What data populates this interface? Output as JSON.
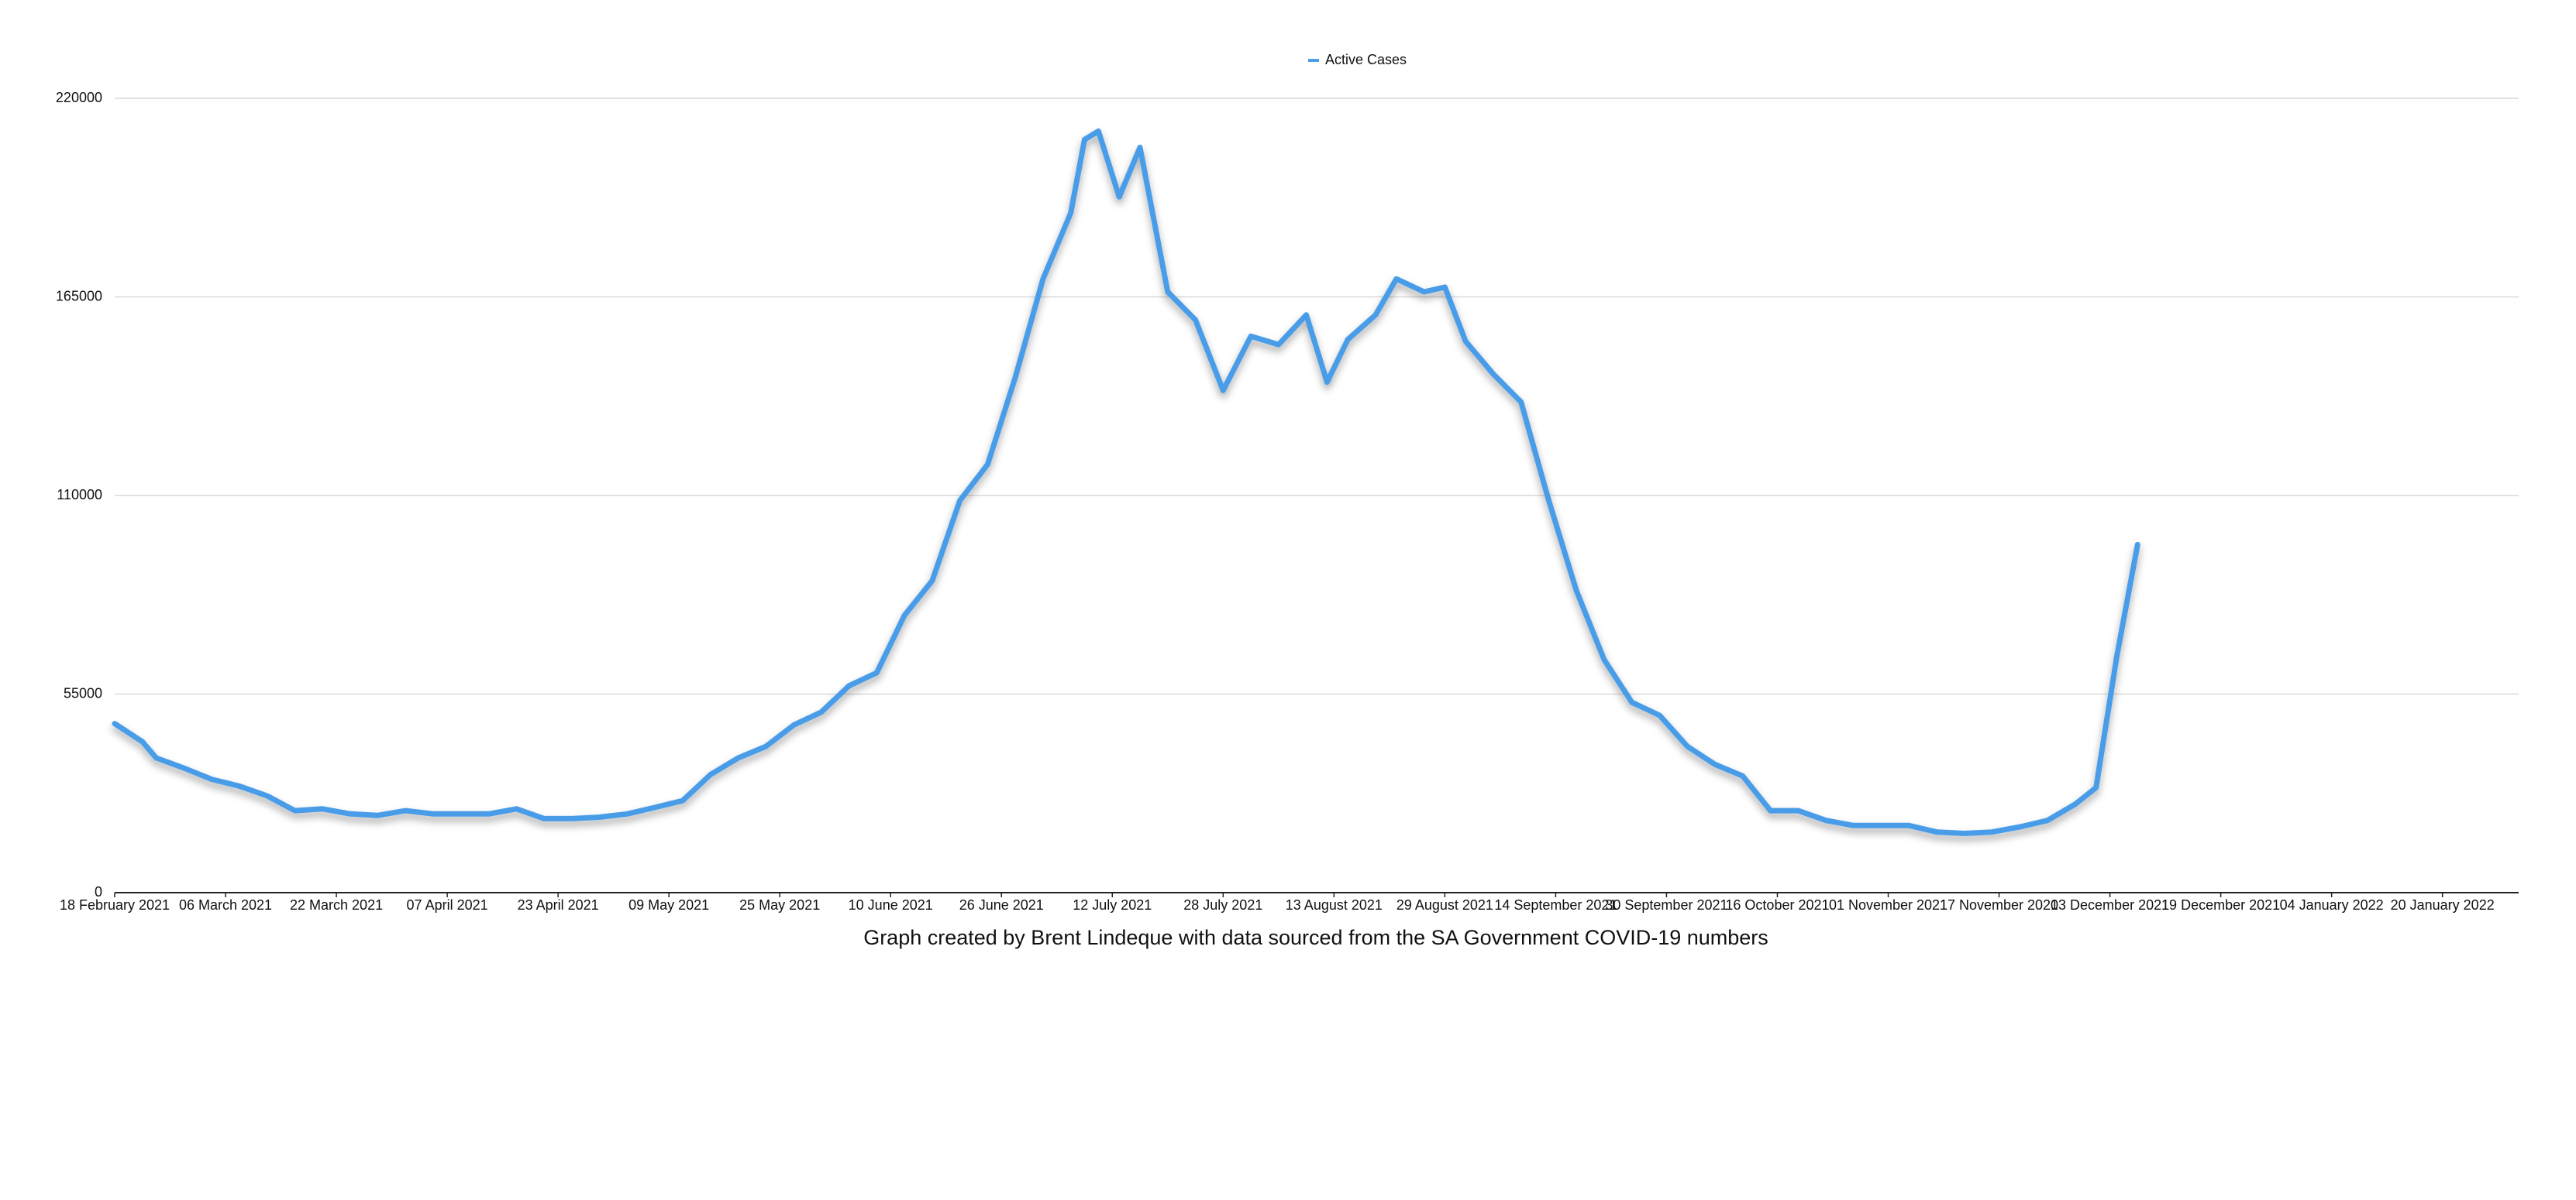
{
  "chart_data": {
    "type": "line",
    "caption": "Graph created by Brent Lindeque with data sourced from the SA Government COVID-19 numbers",
    "legend": "top",
    "grid": true,
    "x": [
      "2021-02-18",
      "2021-02-22",
      "2021-02-24",
      "2021-02-28",
      "2021-03-04",
      "2021-03-08",
      "2021-03-12",
      "2021-03-16",
      "2021-03-20",
      "2021-03-24",
      "2021-03-28",
      "2021-04-01",
      "2021-04-05",
      "2021-04-09",
      "2021-04-13",
      "2021-04-17",
      "2021-04-21",
      "2021-04-25",
      "2021-04-29",
      "2021-05-03",
      "2021-05-07",
      "2021-05-11",
      "2021-05-15",
      "2021-05-19",
      "2021-05-23",
      "2021-05-27",
      "2021-05-31",
      "2021-06-04",
      "2021-06-08",
      "2021-06-12",
      "2021-06-16",
      "2021-06-20",
      "2021-06-24",
      "2021-06-28",
      "2021-07-02",
      "2021-07-06",
      "2021-07-08",
      "2021-07-10",
      "2021-07-13",
      "2021-07-16",
      "2021-07-20",
      "2021-07-24",
      "2021-07-28",
      "2021-08-01",
      "2021-08-05",
      "2021-08-09",
      "2021-08-12",
      "2021-08-15",
      "2021-08-19",
      "2021-08-22",
      "2021-08-26",
      "2021-08-29",
      "2021-09-01",
      "2021-09-05",
      "2021-09-09",
      "2021-09-13",
      "2021-09-17",
      "2021-09-21",
      "2021-09-25",
      "2021-09-29",
      "2021-10-03",
      "2021-10-07",
      "2021-10-11",
      "2021-10-15",
      "2021-10-19",
      "2021-10-23",
      "2021-10-27",
      "2021-10-31",
      "2021-11-04",
      "2021-11-08",
      "2021-11-12",
      "2021-11-16",
      "2021-11-20",
      "2021-11-24",
      "2021-11-28",
      "2021-12-01",
      "2021-12-04",
      "2021-12-07"
    ],
    "series": [
      {
        "name": "Active Cases",
        "color": "#4a9de8",
        "values": [
          46800,
          41800,
          37300,
          34500,
          31400,
          29500,
          26800,
          22700,
          23200,
          21800,
          21400,
          22700,
          21800,
          21800,
          21800,
          23200,
          20500,
          20500,
          20900,
          21800,
          23600,
          25500,
          32700,
          37300,
          40500,
          46400,
          50000,
          57300,
          60900,
          76800,
          86400,
          108600,
          118600,
          142700,
          170000,
          188200,
          208600,
          210900,
          192700,
          206400,
          166400,
          158600,
          139100,
          154100,
          151800,
          160000,
          141400,
          153200,
          160000,
          170000,
          166400,
          167700,
          152700,
          143600,
          135900,
          108600,
          83600,
          64500,
          52700,
          49100,
          40500,
          35500,
          32300,
          22700,
          22700,
          20000,
          18600,
          18600,
          18600,
          16800,
          16400,
          16800,
          18200,
          20000,
          24500,
          29100,
          65500,
          96400
        ]
      }
    ],
    "xlim": [
      "2021-02-18",
      "2022-01-31"
    ],
    "xticks": [
      {
        "value": "2021-02-18",
        "label": "18 February 2021"
      },
      {
        "value": "2021-03-06",
        "label": "06 March 2021"
      },
      {
        "value": "2021-03-22",
        "label": "22 March 2021"
      },
      {
        "value": "2021-04-07",
        "label": "07 April 2021"
      },
      {
        "value": "2021-04-23",
        "label": "23 April 2021"
      },
      {
        "value": "2021-05-09",
        "label": "09 May 2021"
      },
      {
        "value": "2021-05-25",
        "label": "25 May 2021"
      },
      {
        "value": "2021-06-10",
        "label": "10 June 2021"
      },
      {
        "value": "2021-06-26",
        "label": "26 June 2021"
      },
      {
        "value": "2021-07-12",
        "label": "12 July 2021"
      },
      {
        "value": "2021-07-28",
        "label": "28 July 2021"
      },
      {
        "value": "2021-08-13",
        "label": "13 August 2021"
      },
      {
        "value": "2021-08-29",
        "label": "29 August 2021"
      },
      {
        "value": "2021-09-14",
        "label": "14 September 2021"
      },
      {
        "value": "2021-09-30",
        "label": "30 September 2021"
      },
      {
        "value": "2021-10-16",
        "label": "16 October 2021"
      },
      {
        "value": "2021-11-01",
        "label": "01 November 2021"
      },
      {
        "value": "2021-11-17",
        "label": "17 November 2021"
      },
      {
        "value": "2021-12-03",
        "label": "03 December 2021"
      },
      {
        "value": "2021-12-19",
        "label": "19 December 2021"
      },
      {
        "value": "2022-01-04",
        "label": "04 January 2022"
      },
      {
        "value": "2022-01-20",
        "label": "20 January 2022"
      }
    ],
    "ylim": [
      0,
      220000
    ],
    "yticks": [
      0,
      55000,
      110000,
      165000,
      220000
    ]
  }
}
